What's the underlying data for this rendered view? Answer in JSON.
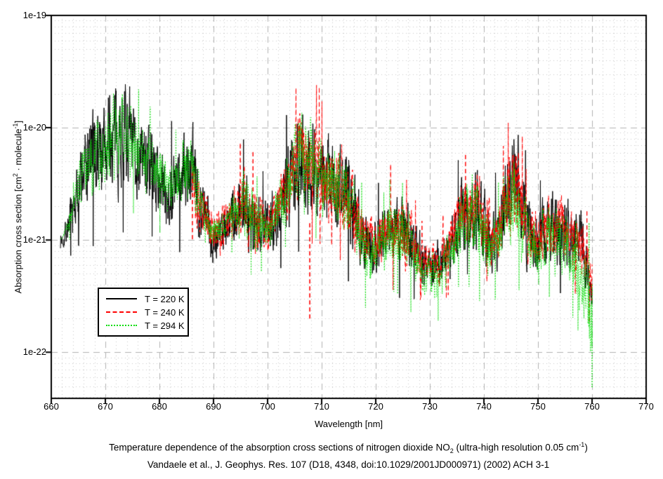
{
  "chart_data": {
    "type": "line",
    "xlabel": "Wavelength [nm]",
    "ylabel_parts": {
      "p1": "Absorption cross section [cm",
      "sup1": "2",
      "p2": " · molecule",
      "sup2": "-1",
      "p3": "]"
    },
    "xlim": [
      660,
      770
    ],
    "ylog": true,
    "ylim_log10": [
      -22.41,
      -19
    ],
    "x_ticks": [
      "660",
      "670",
      "680",
      "690",
      "700",
      "710",
      "720",
      "730",
      "740",
      "750",
      "760",
      "770"
    ],
    "y_ticks": [
      {
        "label": "1e-19",
        "log10": -19
      },
      {
        "label": "1e-20",
        "log10": -20
      },
      {
        "label": "1e-21",
        "log10": -21
      },
      {
        "label": "1e-22",
        "log10": -22
      }
    ],
    "grid": {
      "major_color": "#b0b0b0",
      "minor_color": "#c8c8c8",
      "x_minor_step_nm": 2,
      "x_major_step_nm": 10
    },
    "axis_color": "#000000",
    "legend_position": "inside-lower-left",
    "series": [
      {
        "name": "T = 220 K",
        "temperature_K": 220,
        "color": "#000000",
        "style": "solid",
        "x_start": 661.7,
        "x_end": 760,
        "x": [
          662,
          664,
          666,
          668,
          670,
          672,
          674,
          676,
          678,
          680,
          682,
          684,
          686,
          688,
          690,
          692,
          694,
          696,
          698,
          700,
          702,
          704,
          706,
          708,
          710,
          712,
          714,
          716,
          718,
          720,
          722,
          724,
          726,
          728,
          730,
          732,
          734,
          736,
          738,
          740,
          742,
          744,
          746,
          748,
          750,
          752,
          754,
          756,
          758,
          760
        ],
        "upper_log10": [
          -20.85,
          -20.4,
          -19.75,
          -19.55,
          -19.5,
          -19.35,
          -19.3,
          -19.65,
          -19.7,
          -19.95,
          -20.1,
          -19.9,
          -19.75,
          -20.3,
          -20.6,
          -20.5,
          -20.35,
          -20.05,
          -20.35,
          -20.45,
          -20.3,
          -19.85,
          -19.55,
          -19.55,
          -19.8,
          -19.9,
          -19.9,
          -20.2,
          -20.55,
          -20.65,
          -20.45,
          -20.3,
          -20.45,
          -20.8,
          -20.9,
          -20.85,
          -20.6,
          -20.25,
          -20.05,
          -20.3,
          -20.55,
          -20.1,
          -19.75,
          -20.4,
          -20.55,
          -20.4,
          -20.4,
          -20.5,
          -20.6,
          -20.9
        ],
        "lower_log10": [
          -21.15,
          -21.1,
          -21.0,
          -20.9,
          -20.85,
          -20.8,
          -20.8,
          -20.85,
          -20.9,
          -21.0,
          -21.1,
          -21.0,
          -21.0,
          -21.2,
          -21.35,
          -21.25,
          -21.2,
          -21.3,
          -21.4,
          -21.35,
          -21.2,
          -21.1,
          -21.0,
          -21.05,
          -21.05,
          -21.1,
          -21.15,
          -21.3,
          -21.45,
          -21.45,
          -21.35,
          -21.4,
          -21.45,
          -21.55,
          -21.6,
          -21.55,
          -21.45,
          -21.3,
          -21.3,
          -21.4,
          -21.45,
          -21.25,
          -21.25,
          -21.45,
          -21.45,
          -21.35,
          -21.4,
          -21.45,
          -21.55,
          -21.8
        ],
        "extra_spikes": []
      },
      {
        "name": "T = 240 K",
        "temperature_K": 240,
        "color": "#ff0000",
        "style": "dashed",
        "x_start": 686,
        "x_end": 760,
        "x": [
          686,
          688,
          690,
          692,
          694,
          696,
          698,
          700,
          702,
          704,
          706,
          708,
          710,
          712,
          714,
          716,
          718,
          720,
          722,
          724,
          726,
          728,
          730,
          732,
          734,
          736,
          738,
          740,
          742,
          744,
          746,
          748,
          750,
          752,
          754,
          756,
          758,
          760
        ],
        "upper_log10": [
          -19.8,
          -20.35,
          -20.65,
          -20.55,
          -20.4,
          -20.1,
          -20.4,
          -20.5,
          -20.35,
          -19.9,
          -19.6,
          -19.6,
          -19.85,
          -19.95,
          -19.95,
          -20.25,
          -20.6,
          -20.7,
          -20.5,
          -20.35,
          -20.5,
          -20.85,
          -20.95,
          -20.9,
          -20.65,
          -20.3,
          -20.1,
          -20.35,
          -20.6,
          -20.15,
          -19.8,
          -20.45,
          -20.6,
          -20.45,
          -20.45,
          -20.55,
          -20.65,
          -20.95
        ],
        "lower_log10": [
          -20.94,
          -21.14,
          -21.29,
          -21.19,
          -21.14,
          -21.24,
          -21.34,
          -21.29,
          -21.14,
          -21.04,
          -20.94,
          -20.99,
          -20.99,
          -21.04,
          -21.09,
          -21.24,
          -21.39,
          -21.39,
          -21.29,
          -21.34,
          -21.39,
          -21.49,
          -21.54,
          -21.49,
          -21.39,
          -21.24,
          -21.24,
          -21.34,
          -21.39,
          -21.19,
          -21.19,
          -21.39,
          -21.39,
          -21.29,
          -21.34,
          -21.39,
          -21.49,
          -21.74
        ],
        "extra_spikes": [
          {
            "x": 707.8,
            "from_log10": -20.85,
            "to_log10": -21.7
          }
        ]
      },
      {
        "name": "T = 294 K",
        "temperature_K": 294,
        "color": "#00dd00",
        "style": "dotted",
        "x_start": 661.7,
        "x_end": 760,
        "x": [
          662,
          664,
          666,
          668,
          670,
          672,
          674,
          676,
          678,
          680,
          682,
          684,
          686,
          688,
          690,
          692,
          694,
          696,
          698,
          700,
          702,
          704,
          706,
          708,
          710,
          712,
          714,
          716,
          718,
          720,
          722,
          724,
          726,
          728,
          730,
          732,
          734,
          736,
          738,
          740,
          742,
          744,
          746,
          748,
          750,
          752,
          754,
          756,
          758,
          760
        ],
        "upper_log10": [
          -20.97,
          -20.52,
          -19.87,
          -19.67,
          -19.62,
          -19.47,
          -19.42,
          -19.77,
          -19.82,
          -20.07,
          -20.22,
          -20.02,
          -19.87,
          -20.42,
          -20.72,
          -20.62,
          -20.47,
          -20.17,
          -20.47,
          -20.57,
          -20.42,
          -19.97,
          -19.67,
          -19.67,
          -19.92,
          -20.02,
          -20.02,
          -20.32,
          -20.67,
          -20.77,
          -20.57,
          -20.42,
          -20.57,
          -20.92,
          -21.02,
          -20.97,
          -20.72,
          -20.37,
          -20.17,
          -20.42,
          -20.67,
          -20.22,
          -19.87,
          -20.52,
          -20.67,
          -20.52,
          -20.52,
          -20.62,
          -20.72,
          -21.02
        ],
        "lower_log10": [
          -21.0,
          -20.95,
          -20.85,
          -20.75,
          -20.7,
          -20.65,
          -20.65,
          -20.7,
          -20.75,
          -20.85,
          -20.95,
          -20.85,
          -20.85,
          -21.05,
          -21.2,
          -21.1,
          -21.08,
          -21.18,
          -21.28,
          -21.23,
          -21.1,
          -21.0,
          -20.9,
          -20.95,
          -20.95,
          -21.0,
          -21.1,
          -21.3,
          -21.5,
          -21.5,
          -21.4,
          -21.45,
          -21.5,
          -21.62,
          -21.68,
          -21.62,
          -21.5,
          -21.35,
          -21.35,
          -21.45,
          -21.5,
          -21.28,
          -21.28,
          -21.5,
          -21.5,
          -21.4,
          -21.45,
          -21.6,
          -21.85,
          -22.3
        ],
        "extra_spikes": [
          {
            "x": 760.0,
            "from_log10": -21.4,
            "to_log10": -22.32
          }
        ]
      }
    ],
    "caption_line1_parts": {
      "p1": "Temperature dependence of the absorption cross sections of nitrogen dioxide NO",
      "sub1": "2",
      "p2": " (ultra-high resolution 0.05 cm",
      "sup1": "-1",
      "p3": ")"
    },
    "caption_line2": "Vandaele et al., J. Geophys. Res. 107 (D18, 4348, doi:10.1029/2001JD000971) (2002) ACH 3-1"
  }
}
